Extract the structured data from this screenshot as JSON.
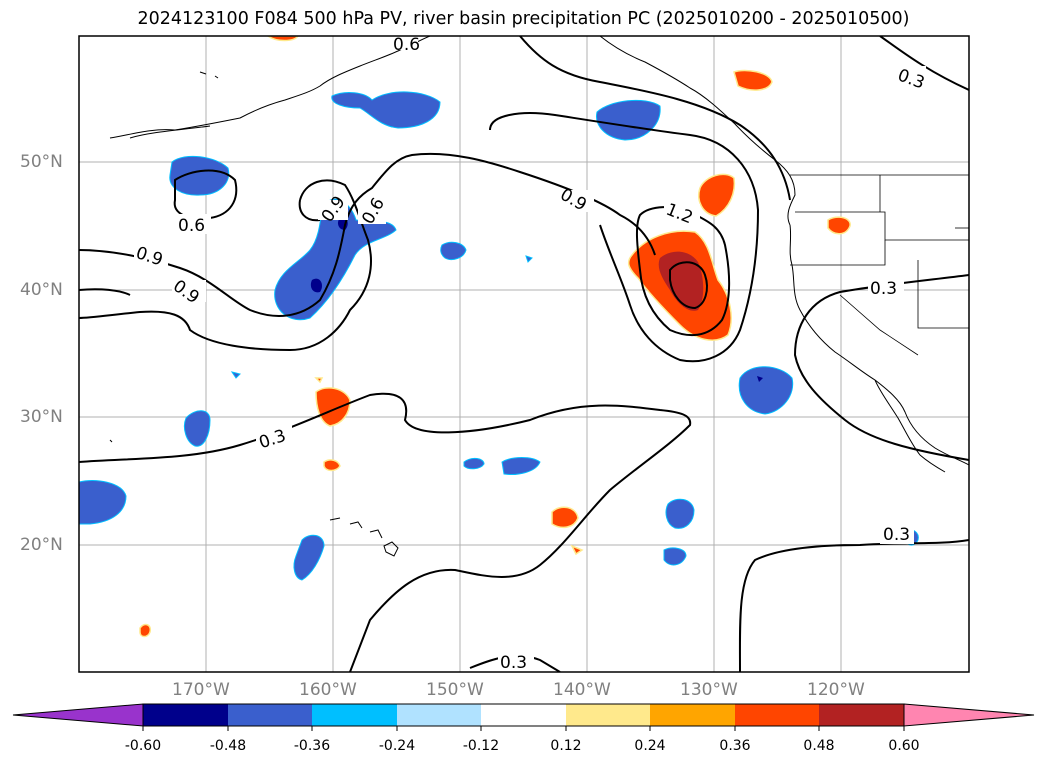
{
  "title": "2024123100 F084 500 hPa PV, river basin precipitation PC (2025010200 - 2025010500)",
  "axes": {
    "lon_ticks": [
      "170°W",
      "160°W",
      "150°W",
      "140°W",
      "130°W",
      "120°W"
    ],
    "lat_ticks": [
      "50°N",
      "40°N",
      "30°N",
      "20°N"
    ],
    "tick_color": "#808080"
  },
  "contour_labels": [
    "0.3",
    "0.6",
    "0.9",
    "1.2"
  ],
  "colorbar": {
    "levels": [
      "-0.60",
      "-0.48",
      "-0.36",
      "-0.24",
      "-0.12",
      "0.12",
      "0.24",
      "0.36",
      "0.48",
      "0.60"
    ],
    "colors": [
      "#9933cc",
      "#00008b",
      "#3a5fcd",
      "#00bfff",
      "#b0e2ff",
      "#ffffff",
      "#ffe98c",
      "#ffa500",
      "#ff4500",
      "#b22222",
      "#ff85b0"
    ],
    "extend": "both"
  },
  "colors": {
    "coast": "#000000",
    "grid": "#b0b0b0",
    "contour": "#000000"
  }
}
